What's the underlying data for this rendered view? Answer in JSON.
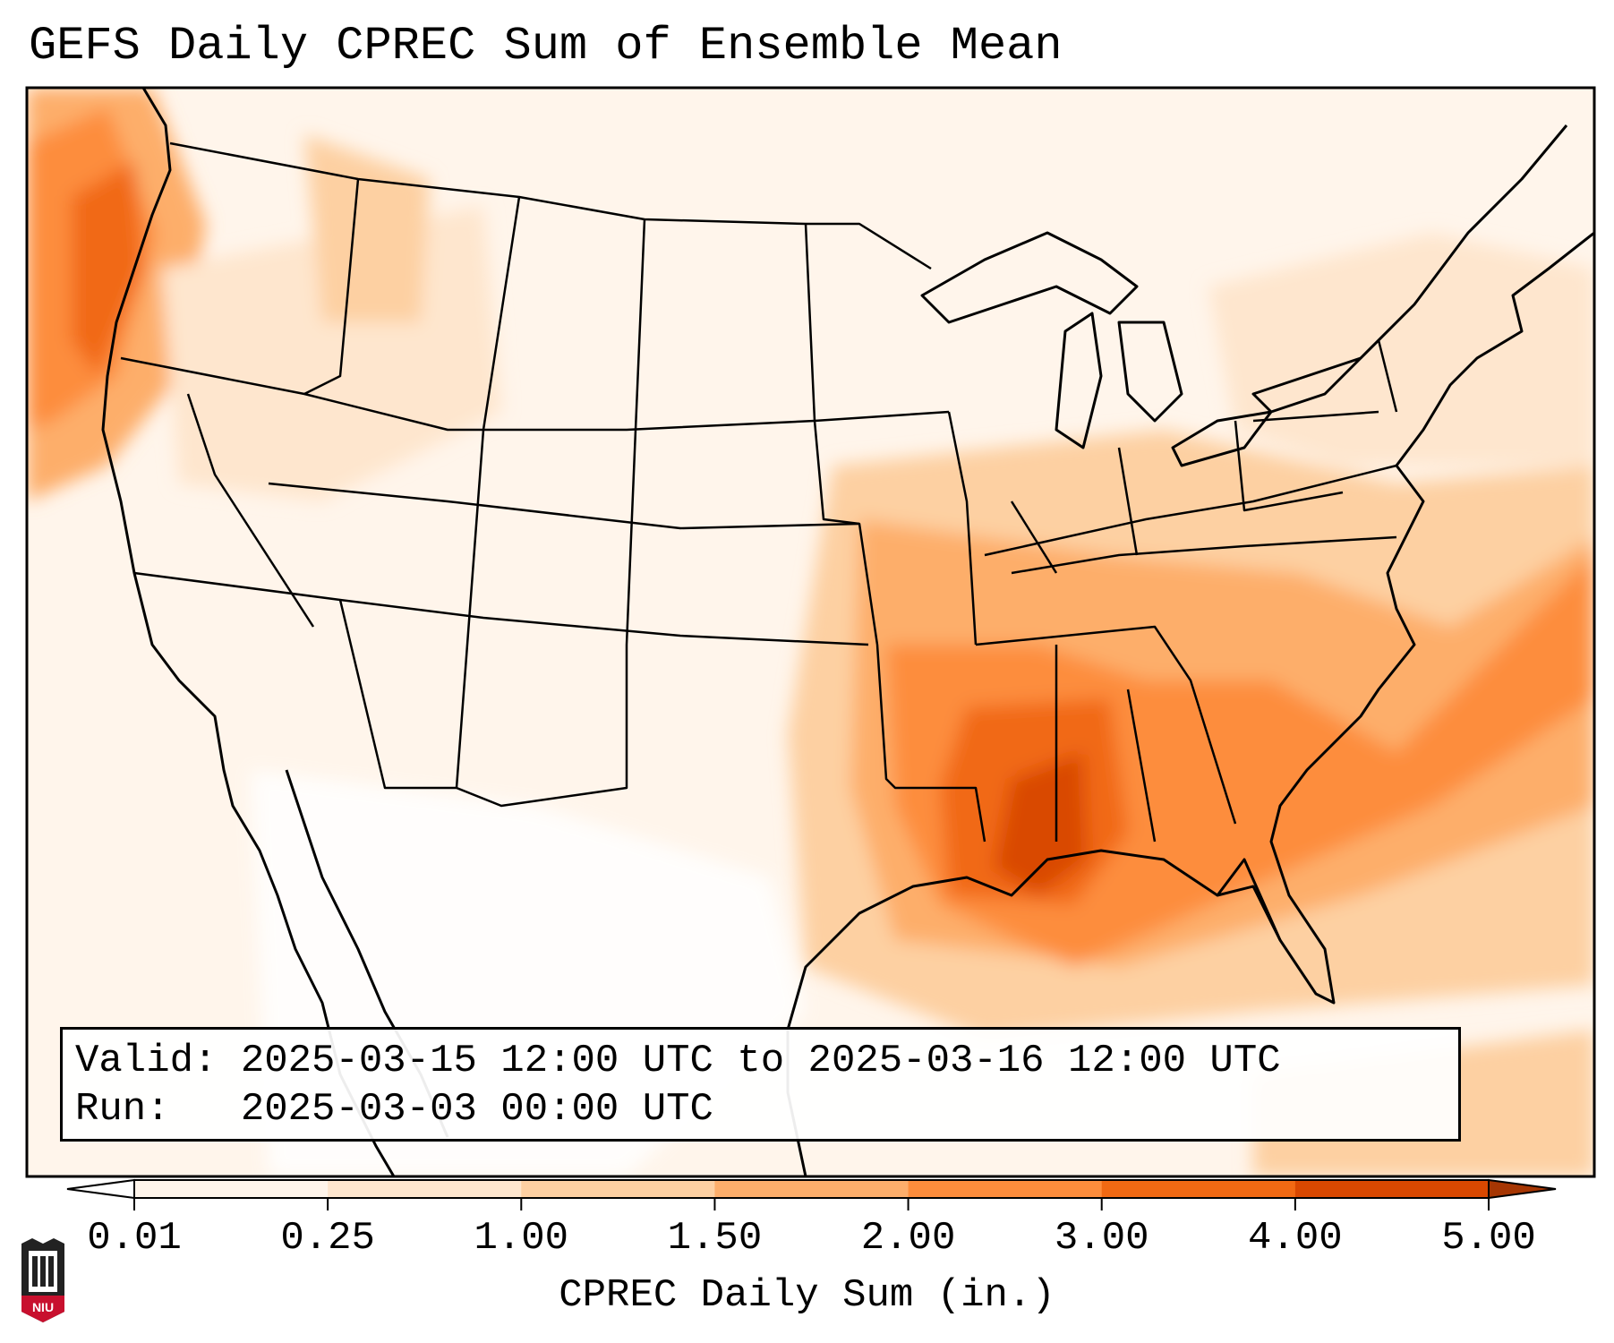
{
  "title": "GEFS Daily CPREC Sum of Ensemble Mean",
  "info": {
    "valid_label": "Valid:",
    "valid_value": "2025-03-15 12:00 UTC to 2025-03-16 12:00 UTC",
    "run_label": "Run:",
    "run_value": "2025-03-03 00:00 UTC"
  },
  "colorbar": {
    "label": "CPREC Daily Sum (in.)",
    "ticks": [
      "0.01",
      "0.25",
      "1.00",
      "1.50",
      "2.00",
      "3.00",
      "4.00",
      "5.00"
    ],
    "colors": [
      "#fff5eb",
      "#fee6ce",
      "#fdd0a2",
      "#fdae6b",
      "#fd8d3c",
      "#f16913",
      "#d94801",
      "#a63603"
    ],
    "extend": "both"
  },
  "logo": {
    "text": "NIU",
    "color": "#c8102e"
  },
  "map": {
    "projection": "Lambert Conformal",
    "region": "Contiguous United States",
    "features": [
      "state-borders",
      "coastlines",
      "country-borders"
    ],
    "max_precip_region": "Mississippi / Alabama / central Gulf Coast"
  }
}
